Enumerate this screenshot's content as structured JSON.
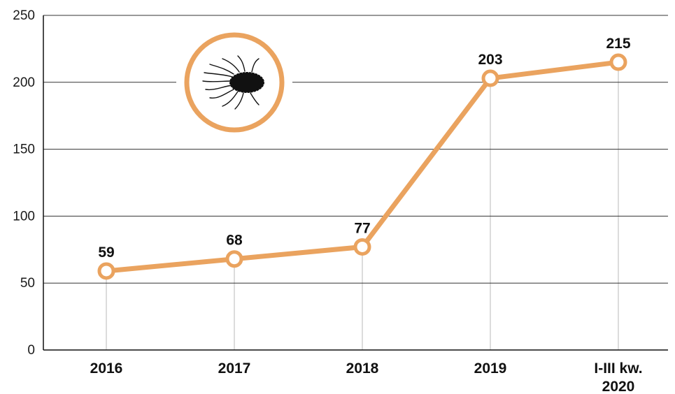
{
  "chart_data": {
    "type": "line",
    "categories": [
      "2016",
      "2017",
      "2018",
      "2019",
      "I-III kw.\n2020"
    ],
    "series": [
      {
        "values": [
          59,
          68,
          77,
          203,
          215
        ]
      }
    ],
    "data_labels": [
      "59",
      "68",
      "77",
      "203",
      "215"
    ],
    "y_ticks": [
      "0",
      "50",
      "100",
      "150",
      "200",
      "250"
    ],
    "ylim": [
      0,
      250
    ],
    "grid": "horizontal",
    "colors": {
      "line": "#eaa35f",
      "marker_fill": "#ffffff",
      "grid": "#333333",
      "drop_line": "#d0d0d0",
      "icon_ring": "#eaa35f"
    },
    "icon": "bacterium-icon"
  }
}
